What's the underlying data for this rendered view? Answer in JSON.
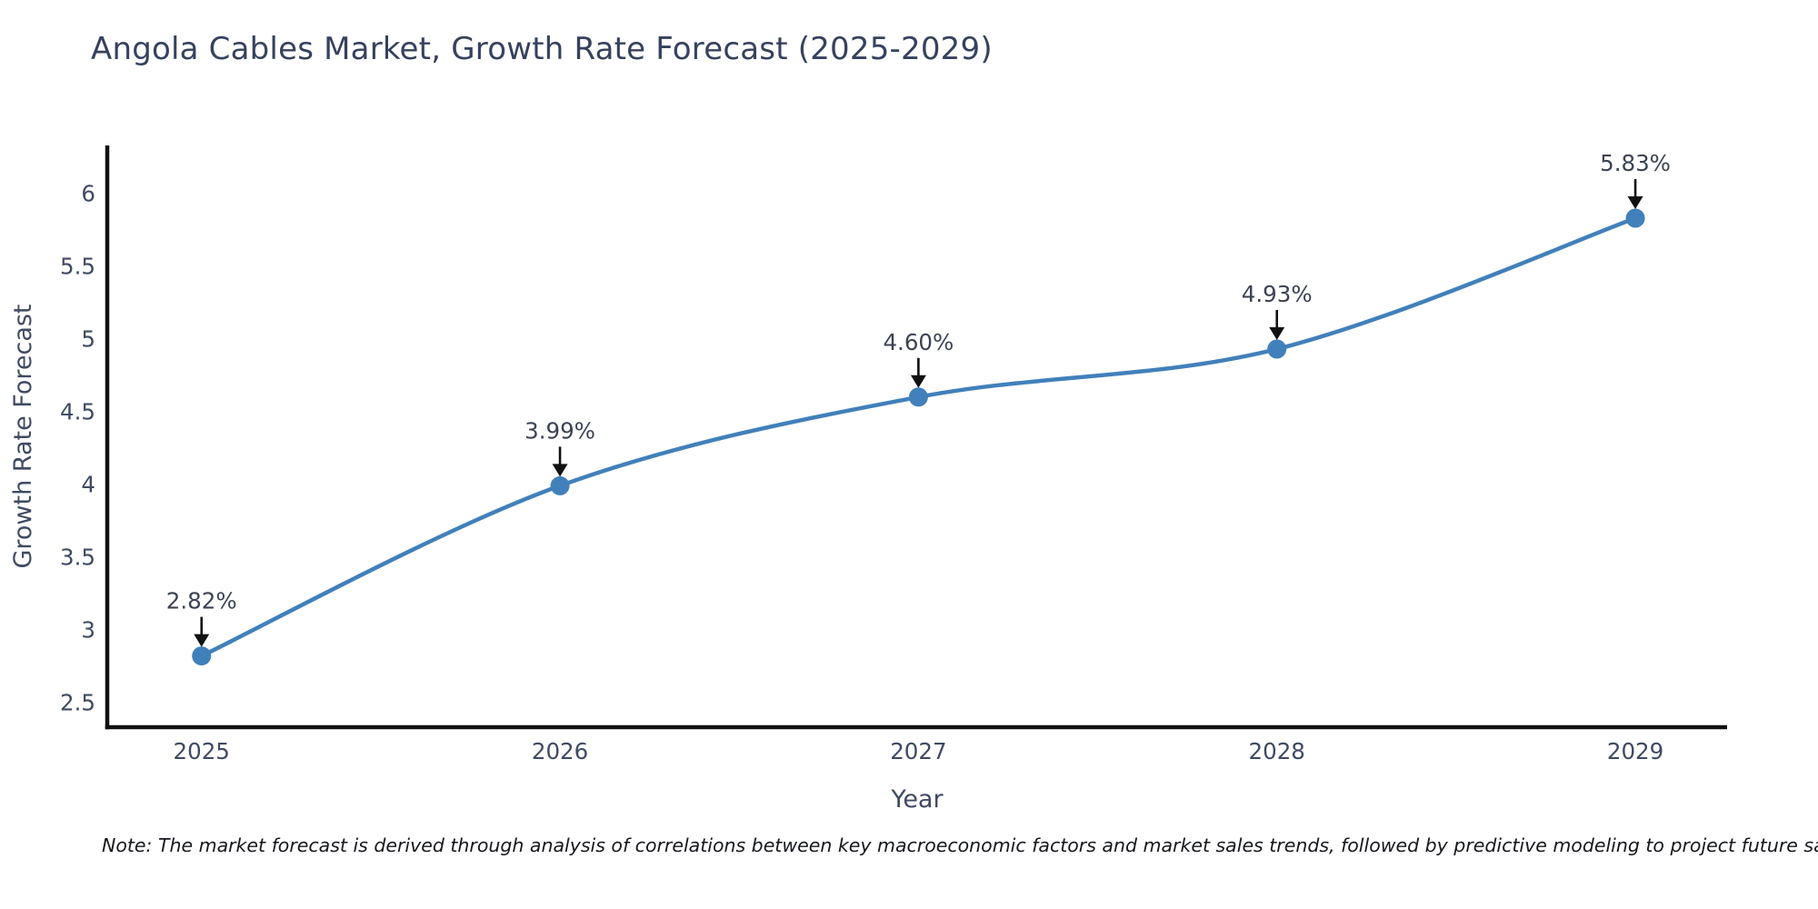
{
  "page": {
    "note": "Note: The market forecast is derived through analysis of correlations between key macroeconomic factors and market sales trends, followed by predictive modeling to project future sales"
  },
  "chart_data": {
    "type": "line",
    "title": "Angola Cables Market, Growth Rate Forecast (2025-2029)",
    "xlabel": "Year",
    "ylabel": "Growth Rate Forecast",
    "x": [
      2025,
      2026,
      2027,
      2028,
      2029
    ],
    "series": [
      {
        "name": "Growth Rate Forecast",
        "values": [
          2.82,
          3.99,
          4.6,
          4.93,
          5.83
        ]
      }
    ],
    "point_labels": [
      "2.82%",
      "3.99%",
      "4.60%",
      "4.93%",
      "5.83%"
    ],
    "x_ticks": [
      2025,
      2026,
      2027,
      2028,
      2029
    ],
    "y_ticks": [
      2.5,
      3,
      3.5,
      4,
      4.5,
      5,
      5.5,
      6
    ],
    "x_range": [
      2024.737,
      2029.256
    ],
    "y_range": [
      2.33,
      6.33
    ],
    "grid": false,
    "legend": "none",
    "line_shape": "spline",
    "colors": {
      "line": "#4180ba",
      "marker": "#4180ba",
      "axis": "#111111",
      "tick_text": "#3f4a63",
      "title_text": "#36415e",
      "annotation_text": "#3c4353",
      "arrow": "#111111",
      "note_text": "#16181d",
      "background": "#ffffff"
    }
  }
}
